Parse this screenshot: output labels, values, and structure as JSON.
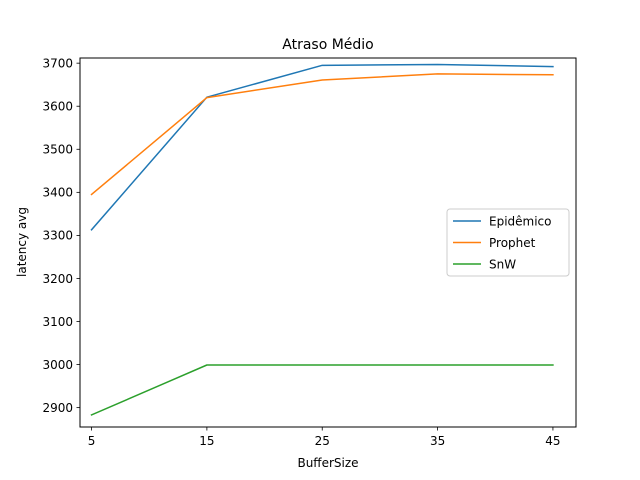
{
  "chart_data": {
    "type": "line",
    "title": "Atraso Médio",
    "xlabel": "BufferSize",
    "ylabel": "latency avg",
    "x": [
      5,
      15,
      25,
      35,
      45
    ],
    "xticks": [
      "5",
      "15",
      "25",
      "35",
      "45"
    ],
    "yticks": [
      "2900",
      "3000",
      "3100",
      "3200",
      "3300",
      "3400",
      "3500",
      "3600",
      "3700"
    ],
    "xlim": [
      4,
      47
    ],
    "ylim": [
      2855,
      3712
    ],
    "grid": false,
    "legend_position": "center-right",
    "series": [
      {
        "name": "Epidêmico",
        "color": "#1f77b4",
        "values": [
          3313,
          3621,
          3695,
          3697,
          3692
        ]
      },
      {
        "name": "Prophet",
        "color": "#ff7f0e",
        "values": [
          3395,
          3620,
          3661,
          3675,
          3673
        ]
      },
      {
        "name": "SnW",
        "color": "#2ca02c",
        "values": [
          2883,
          2999,
          2999,
          2999,
          2999
        ]
      }
    ]
  }
}
